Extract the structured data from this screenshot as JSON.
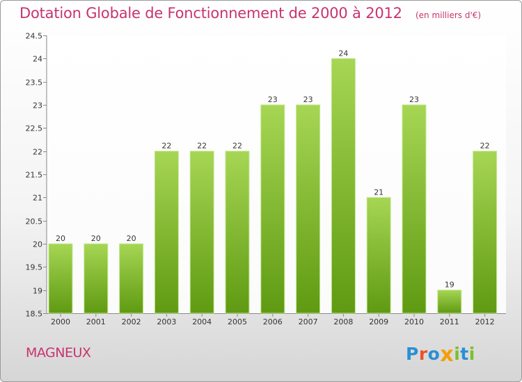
{
  "header": {
    "title": "Dotation Globale de Fonctionnement de 2000 à 2012",
    "subtitle": "(en milliers d'€)"
  },
  "footer": {
    "commune": "MAGNEUX",
    "brand": {
      "text": "Proxiti",
      "letters": [
        {
          "ch": "P",
          "color": "#2a8fd6"
        },
        {
          "ch": "r",
          "color": "#e8542a"
        },
        {
          "ch": "o",
          "color": "#2a8fd6"
        },
        {
          "ch": "x",
          "color": "#f2a007"
        },
        {
          "ch": "i",
          "color": "#7bbf2a"
        },
        {
          "ch": "t",
          "color": "#2a8fd6"
        },
        {
          "ch": "i",
          "color": "#7bbf2a"
        }
      ]
    }
  },
  "chart_data": {
    "type": "bar",
    "categories": [
      "2000",
      "2001",
      "2002",
      "2003",
      "2004",
      "2005",
      "2006",
      "2007",
      "2008",
      "2009",
      "2010",
      "2011",
      "2012"
    ],
    "values": [
      20,
      20,
      20,
      22,
      22,
      22,
      23,
      23,
      24,
      21,
      23,
      19,
      22
    ],
    "value_labels": [
      "20",
      "20",
      "20",
      "22",
      "22",
      "22",
      "23",
      "23",
      "24",
      "21",
      "23",
      "19",
      "22"
    ],
    "ylim": [
      18.5,
      24.5
    ],
    "yticks": [
      18.5,
      19,
      19.5,
      20,
      20.5,
      21,
      21.5,
      22,
      22.5,
      23,
      23.5,
      24,
      24.5
    ],
    "ytick_labels": [
      "18.5",
      "19",
      "19.5",
      "20",
      "20.5",
      "21",
      "21.5",
      "22",
      "22.5",
      "23",
      "23.5",
      "24",
      "24.5"
    ],
    "grid": false,
    "colors": {
      "bar_light": "#a6d654",
      "bar_dark": "#5f9a12",
      "bar_edge": "#c5e890",
      "axis": "#888888",
      "text": "#333333",
      "plot_bg": "#ffffff"
    }
  }
}
